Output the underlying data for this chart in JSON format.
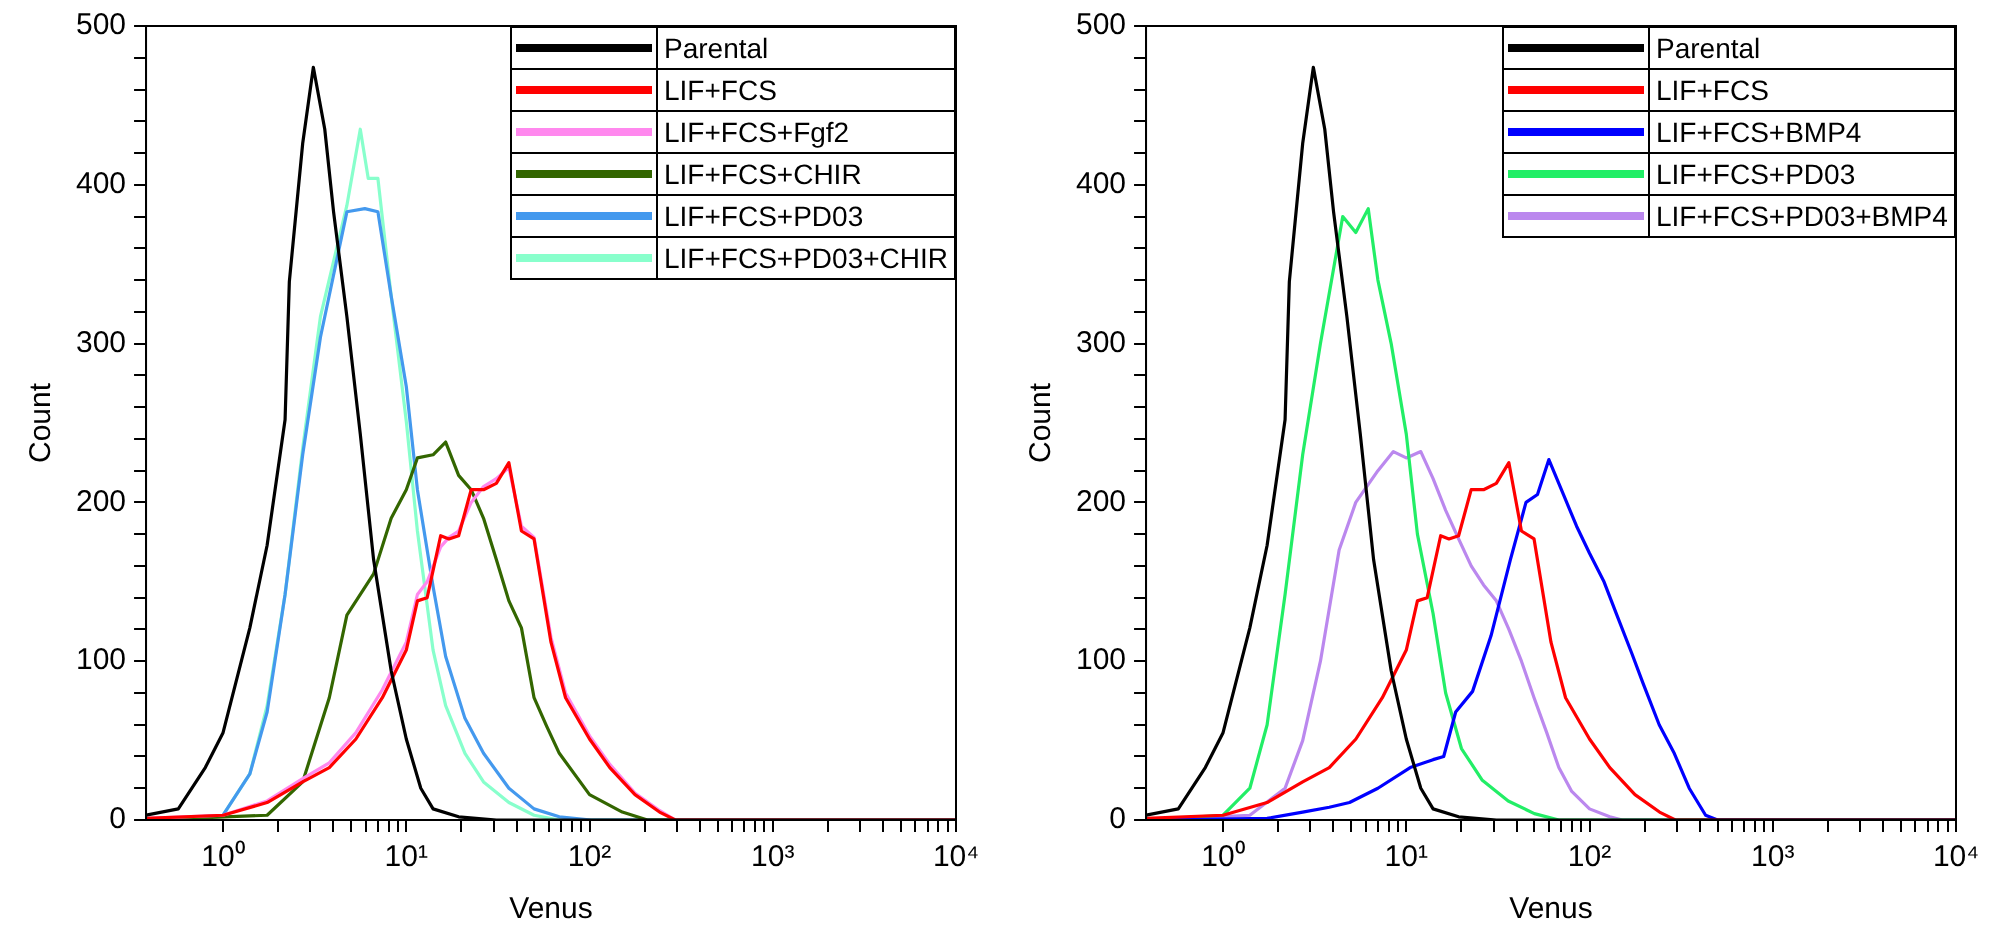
{
  "chart_data": [
    {
      "type": "line",
      "xlabel": "Venus",
      "ylabel": "Count",
      "log": "x",
      "xlim": [
        0.38,
        10000
      ],
      "ylim": [
        0,
        500
      ],
      "legend": "top right",
      "xticks": [
        {
          "value": 1,
          "label": "10⁰"
        },
        {
          "value": 2,
          "label": null
        },
        {
          "value": 3,
          "label": null
        },
        {
          "value": 4,
          "label": null
        },
        {
          "value": 5,
          "label": null
        },
        {
          "value": 6,
          "label": null
        },
        {
          "value": 7,
          "label": null
        },
        {
          "value": 8,
          "label": null
        },
        {
          "value": 9,
          "label": null
        },
        {
          "value": 10,
          "label": "10¹"
        },
        {
          "value": 20,
          "label": null
        },
        {
          "value": 30,
          "label": null
        },
        {
          "value": 40,
          "label": null
        },
        {
          "value": 50,
          "label": null
        },
        {
          "value": 60,
          "label": null
        },
        {
          "value": 70,
          "label": null
        },
        {
          "value": 80,
          "label": null
        },
        {
          "value": 90,
          "label": null
        },
        {
          "value": 100,
          "label": "10²"
        },
        {
          "value": 200,
          "label": null
        },
        {
          "value": 300,
          "label": null
        },
        {
          "value": 400,
          "label": null
        },
        {
          "value": 500,
          "label": null
        },
        {
          "value": 600,
          "label": null
        },
        {
          "value": 700,
          "label": null
        },
        {
          "value": 800,
          "label": null
        },
        {
          "value": 900,
          "label": null
        },
        {
          "value": 1000,
          "label": "10³"
        },
        {
          "value": 2000,
          "label": null
        },
        {
          "value": 3000,
          "label": null
        },
        {
          "value": 4000,
          "label": null
        },
        {
          "value": 5000,
          "label": null
        },
        {
          "value": 6000,
          "label": null
        },
        {
          "value": 7000,
          "label": null
        },
        {
          "value": 8000,
          "label": null
        },
        {
          "value": 9000,
          "label": null
        },
        {
          "value": 10000,
          "label": "10⁴"
        }
      ],
      "yticks": [
        0,
        {
          "value": 20,
          "label": null
        },
        {
          "value": 40,
          "label": null
        },
        {
          "value": 60,
          "label": null
        },
        {
          "value": 80,
          "label": null
        },
        100,
        {
          "value": 120,
          "label": null
        },
        {
          "value": 140,
          "label": null
        },
        {
          "value": 160,
          "label": null
        },
        {
          "value": 180,
          "label": null
        },
        200,
        {
          "value": 220,
          "label": null
        },
        {
          "value": 240,
          "label": null
        },
        {
          "value": 260,
          "label": null
        },
        {
          "value": 280,
          "label": null
        },
        300,
        {
          "value": 320,
          "label": null
        },
        {
          "value": 340,
          "label": null
        },
        {
          "value": 360,
          "label": null
        },
        {
          "value": 380,
          "label": null
        },
        400,
        {
          "value": 420,
          "label": null
        },
        {
          "value": 440,
          "label": null
        },
        {
          "value": 460,
          "label": null
        },
        {
          "value": 480,
          "label": null
        },
        500
      ],
      "series": [
        {
          "name": "Parental",
          "color": "#000000",
          "x": [
            0.38,
            0.57,
            0.8,
            1,
            1.4,
            1.74,
            2.18,
            2.3,
            2.72,
            3.11,
            3.59,
            4.01,
            4.74,
            5.61,
            6.63,
            8.27,
            10,
            12,
            14,
            19.3,
            31,
            10000
          ],
          "values": [
            3,
            7,
            33,
            55,
            121,
            173,
            252,
            339,
            426,
            474,
            435,
            383,
            317,
            243,
            164,
            94,
            51,
            20,
            7,
            2,
            0,
            0
          ]
        },
        {
          "name": "LIF+FCS",
          "color": "#ff0000",
          "x": [
            0.38,
            1,
            1.74,
            2.72,
            3.8,
            5.31,
            7.4,
            10,
            11.5,
            13,
            15.4,
            17.1,
            19.3,
            22.6,
            26.4,
            31,
            36.3,
            42.5,
            49.8,
            61.6,
            74,
            100,
            129,
            177,
            241,
            294,
            10000
          ],
          "values": [
            1,
            3,
            11,
            24,
            33,
            51,
            77,
            107,
            138,
            140,
            179,
            177,
            179,
            208,
            208,
            212,
            225,
            182,
            177,
            112,
            77,
            51,
            33,
            16,
            5,
            0,
            0
          ]
        },
        {
          "name": "LIF+FCS+Fgf2",
          "color": "#ff88ee",
          "x": [
            0.38,
            1,
            1.74,
            2.72,
            3.8,
            5.31,
            7.4,
            10,
            11.5,
            13,
            15.4,
            17.1,
            19.3,
            22.6,
            26.4,
            31,
            36.3,
            42.5,
            49.8,
            61.6,
            74,
            100,
            129,
            177,
            241,
            294,
            10000
          ],
          "values": [
            1,
            3,
            12,
            26,
            36,
            55,
            82,
            112,
            142,
            150,
            172,
            178,
            182,
            200,
            210,
            215,
            222,
            185,
            178,
            115,
            80,
            53,
            35,
            17,
            6,
            0,
            0
          ]
        },
        {
          "name": "LIF+FCS+CHIR",
          "color": "#336600",
          "x": [
            0.38,
            1.74,
            2.72,
            3.8,
            4.74,
            6.63,
            8.27,
            10,
            11.5,
            14,
            16.4,
            19.3,
            22.6,
            26.4,
            31,
            36.3,
            42.5,
            49.8,
            58.4,
            68.4,
            100,
            151,
            207,
            10000
          ],
          "values": [
            0,
            3,
            24,
            77,
            129,
            155,
            190,
            208,
            228,
            230,
            238,
            217,
            208,
            190,
            164,
            138,
            121,
            77,
            59,
            42,
            16,
            5,
            0,
            0
          ]
        },
        {
          "name": "LIF+FCS+PD03",
          "color": "#4499ee",
          "x": [
            0.38,
            1,
            1.4,
            1.74,
            2.18,
            2.72,
            3.4,
            4.74,
            5.94,
            7,
            8.27,
            10,
            11.5,
            14,
            16.4,
            20.9,
            26.4,
            36.3,
            49.8,
            68.4,
            102,
            10000
          ],
          "values": [
            0,
            3,
            29,
            68,
            142,
            230,
            304,
            383,
            385,
            383,
            330,
            273,
            208,
            147,
            103,
            64,
            42,
            20,
            7,
            2,
            0,
            0
          ]
        },
        {
          "name": "LIF+FCS+PD03+CHIR",
          "color": "#88ffcc",
          "x": [
            0.38,
            1,
            1.4,
            1.74,
            2.18,
            2.72,
            3.4,
            4.74,
            5.61,
            6.2,
            7,
            8.27,
            10,
            11.5,
            14,
            16.4,
            20.9,
            26.4,
            36.3,
            49.8,
            68.4,
            10000
          ],
          "values": [
            0,
            3,
            29,
            72,
            142,
            234,
            317,
            387,
            435,
            404,
            404,
            330,
            251,
            182,
            107,
            72,
            42,
            24,
            11,
            3,
            0,
            0
          ]
        }
      ]
    },
    {
      "type": "line",
      "xlabel": "Venus",
      "ylabel": "Count",
      "log": "x",
      "xlim": [
        0.38,
        10000
      ],
      "ylim": [
        0,
        500
      ],
      "legend": "top right",
      "xticks": [
        {
          "value": 1,
          "label": "10⁰"
        },
        {
          "value": 2,
          "label": null
        },
        {
          "value": 3,
          "label": null
        },
        {
          "value": 4,
          "label": null
        },
        {
          "value": 5,
          "label": null
        },
        {
          "value": 6,
          "label": null
        },
        {
          "value": 7,
          "label": null
        },
        {
          "value": 8,
          "label": null
        },
        {
          "value": 9,
          "label": null
        },
        {
          "value": 10,
          "label": "10¹"
        },
        {
          "value": 20,
          "label": null
        },
        {
          "value": 30,
          "label": null
        },
        {
          "value": 40,
          "label": null
        },
        {
          "value": 50,
          "label": null
        },
        {
          "value": 60,
          "label": null
        },
        {
          "value": 70,
          "label": null
        },
        {
          "value": 80,
          "label": null
        },
        {
          "value": 90,
          "label": null
        },
        {
          "value": 100,
          "label": "10²"
        },
        {
          "value": 200,
          "label": null
        },
        {
          "value": 300,
          "label": null
        },
        {
          "value": 400,
          "label": null
        },
        {
          "value": 500,
          "label": null
        },
        {
          "value": 600,
          "label": null
        },
        {
          "value": 700,
          "label": null
        },
        {
          "value": 800,
          "label": null
        },
        {
          "value": 900,
          "label": null
        },
        {
          "value": 1000,
          "label": "10³"
        },
        {
          "value": 2000,
          "label": null
        },
        {
          "value": 3000,
          "label": null
        },
        {
          "value": 4000,
          "label": null
        },
        {
          "value": 5000,
          "label": null
        },
        {
          "value": 6000,
          "label": null
        },
        {
          "value": 7000,
          "label": null
        },
        {
          "value": 8000,
          "label": null
        },
        {
          "value": 9000,
          "label": null
        },
        {
          "value": 10000,
          "label": "10⁴"
        }
      ],
      "yticks": [
        0,
        {
          "value": 20,
          "label": null
        },
        {
          "value": 40,
          "label": null
        },
        {
          "value": 60,
          "label": null
        },
        {
          "value": 80,
          "label": null
        },
        100,
        {
          "value": 120,
          "label": null
        },
        {
          "value": 140,
          "label": null
        },
        {
          "value": 160,
          "label": null
        },
        {
          "value": 180,
          "label": null
        },
        200,
        {
          "value": 220,
          "label": null
        },
        {
          "value": 240,
          "label": null
        },
        {
          "value": 260,
          "label": null
        },
        {
          "value": 280,
          "label": null
        },
        300,
        {
          "value": 320,
          "label": null
        },
        {
          "value": 340,
          "label": null
        },
        {
          "value": 360,
          "label": null
        },
        {
          "value": 380,
          "label": null
        },
        400,
        {
          "value": 420,
          "label": null
        },
        {
          "value": 440,
          "label": null
        },
        {
          "value": 460,
          "label": null
        },
        {
          "value": 480,
          "label": null
        },
        500
      ],
      "series": [
        {
          "name": "Parental",
          "color": "#000000",
          "x": [
            0.38,
            0.57,
            0.8,
            1,
            1.4,
            1.74,
            2.18,
            2.3,
            2.72,
            3.11,
            3.59,
            4.01,
            4.74,
            5.61,
            6.63,
            8.27,
            10,
            12,
            14,
            19.3,
            31,
            10000
          ],
          "values": [
            3,
            7,
            33,
            55,
            121,
            173,
            252,
            339,
            426,
            474,
            435,
            383,
            317,
            243,
            164,
            94,
            51,
            20,
            7,
            2,
            0,
            0
          ]
        },
        {
          "name": "LIF+FCS",
          "color": "#ff0000",
          "x": [
            0.38,
            1,
            1.74,
            2.72,
            3.8,
            5.31,
            7.4,
            10,
            11.5,
            13,
            15.4,
            17.1,
            19.3,
            22.6,
            26.4,
            31,
            36.3,
            42.5,
            49.8,
            61.6,
            74,
            100,
            129,
            177,
            241,
            294,
            10000
          ],
          "values": [
            1,
            3,
            11,
            24,
            33,
            51,
            77,
            107,
            138,
            140,
            179,
            177,
            179,
            208,
            208,
            212,
            225,
            182,
            177,
            112,
            77,
            51,
            33,
            16,
            5,
            0,
            0
          ]
        },
        {
          "name": "LIF+FCS+BMP4",
          "color": "#0000ff",
          "x": [
            0.38,
            1.74,
            2.72,
            3.8,
            4.9,
            7,
            10.5,
            14,
            16,
            18.6,
            23,
            29,
            37,
            45,
            52,
            60,
            72,
            85,
            100,
            120,
            140,
            170,
            196,
            240,
            290,
            350,
            430,
            500,
            10000
          ],
          "values": [
            0,
            1,
            5,
            8,
            11,
            20,
            33,
            38,
            40,
            68,
            81,
            116,
            164,
            200,
            205,
            227,
            205,
            185,
            168,
            150,
            130,
            105,
            86,
            60,
            42,
            20,
            3,
            0,
            0
          ]
        },
        {
          "name": "LIF+FCS+PD03",
          "color": "#22ee66",
          "x": [
            0.38,
            1,
            1.4,
            1.74,
            2.18,
            2.72,
            3.4,
            4.5,
            5.3,
            6.2,
            7,
            8.27,
            10,
            11.5,
            14,
            16.4,
            20,
            26,
            36,
            50,
            68,
            10000
          ],
          "values": [
            0,
            3,
            20,
            60,
            142,
            230,
            300,
            380,
            370,
            385,
            340,
            300,
            243,
            180,
            130,
            80,
            45,
            25,
            12,
            4,
            0,
            0
          ]
        },
        {
          "name": "LIF+FCS+PD03+BMP4",
          "color": "#bb88ee",
          "x": [
            0.38,
            1.4,
            2.18,
            2.72,
            3.4,
            4.3,
            5.3,
            7,
            8.5,
            10,
            12,
            14,
            16.4,
            19.3,
            22.6,
            26.4,
            31,
            36.3,
            42.5,
            49.8,
            58.4,
            68,
            80,
            100,
            129,
            151,
            10000
          ],
          "values": [
            0,
            3,
            20,
            50,
            100,
            170,
            200,
            220,
            232,
            228,
            232,
            215,
            195,
            177,
            160,
            148,
            138,
            120,
            100,
            77,
            55,
            33,
            18,
            7,
            2,
            0,
            0
          ]
        }
      ]
    }
  ]
}
